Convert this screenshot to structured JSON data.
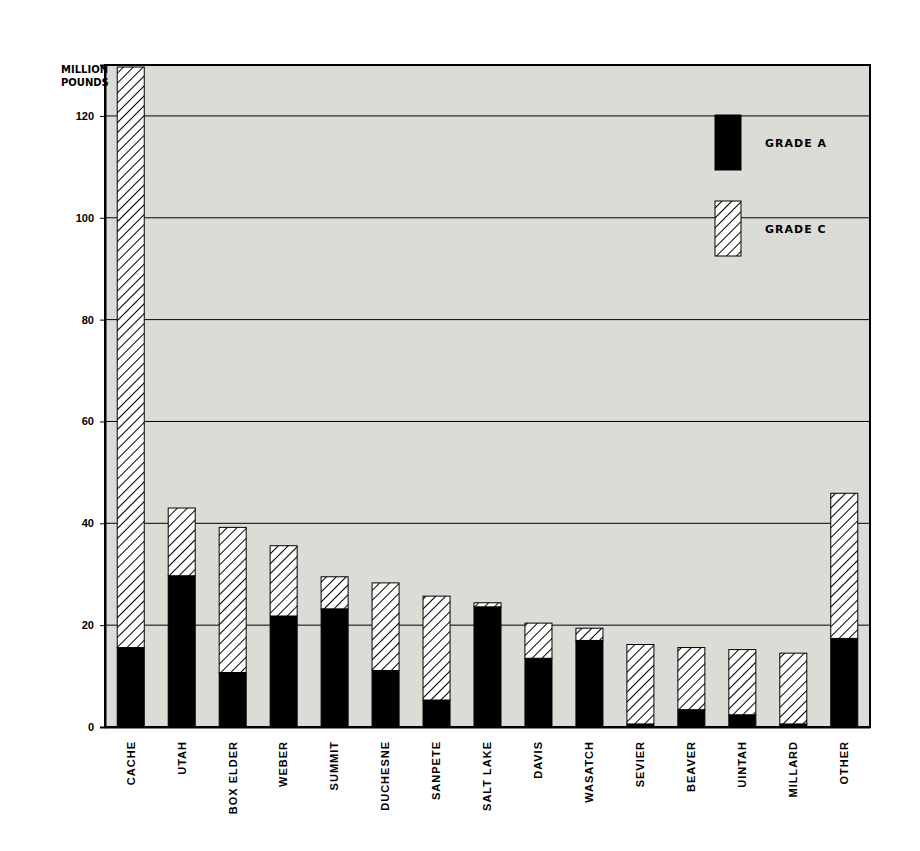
{
  "chart_data": {
    "type": "bar",
    "stacked": true,
    "y_label": "MILLION POUNDS",
    "categories": [
      "CACHE",
      "UTAH",
      "BOX ELDER",
      "WEBER",
      "SUMMIT",
      "DUCHESNE",
      "SANPETE",
      "SALT LAKE",
      "DAVIS",
      "WASATCH",
      "SEVIER",
      "BEAVER",
      "UINTAH",
      "MILLARD",
      "OTHER"
    ],
    "series": [
      {
        "name": "GRADE A",
        "color": "#000000",
        "values": [
          15.6,
          29.7,
          10.7,
          21.8,
          23.2,
          11.1,
          5.3,
          23.6,
          13.5,
          17.0,
          0.6,
          3.4,
          2.4,
          0.6,
          17.4
        ]
      },
      {
        "name": "GRADE C",
        "color": "#000000",
        "marker": "hatch",
        "values": [
          114.0,
          13.3,
          28.5,
          13.8,
          6.3,
          17.2,
          20.4,
          0.8,
          6.9,
          2.4,
          15.6,
          12.2,
          12.8,
          13.9,
          28.5
        ]
      }
    ],
    "ylim": [
      0,
      130
    ],
    "yticks": [
      0,
      20,
      40,
      60,
      80,
      100,
      120
    ],
    "grid": true,
    "legend": "top-right"
  }
}
